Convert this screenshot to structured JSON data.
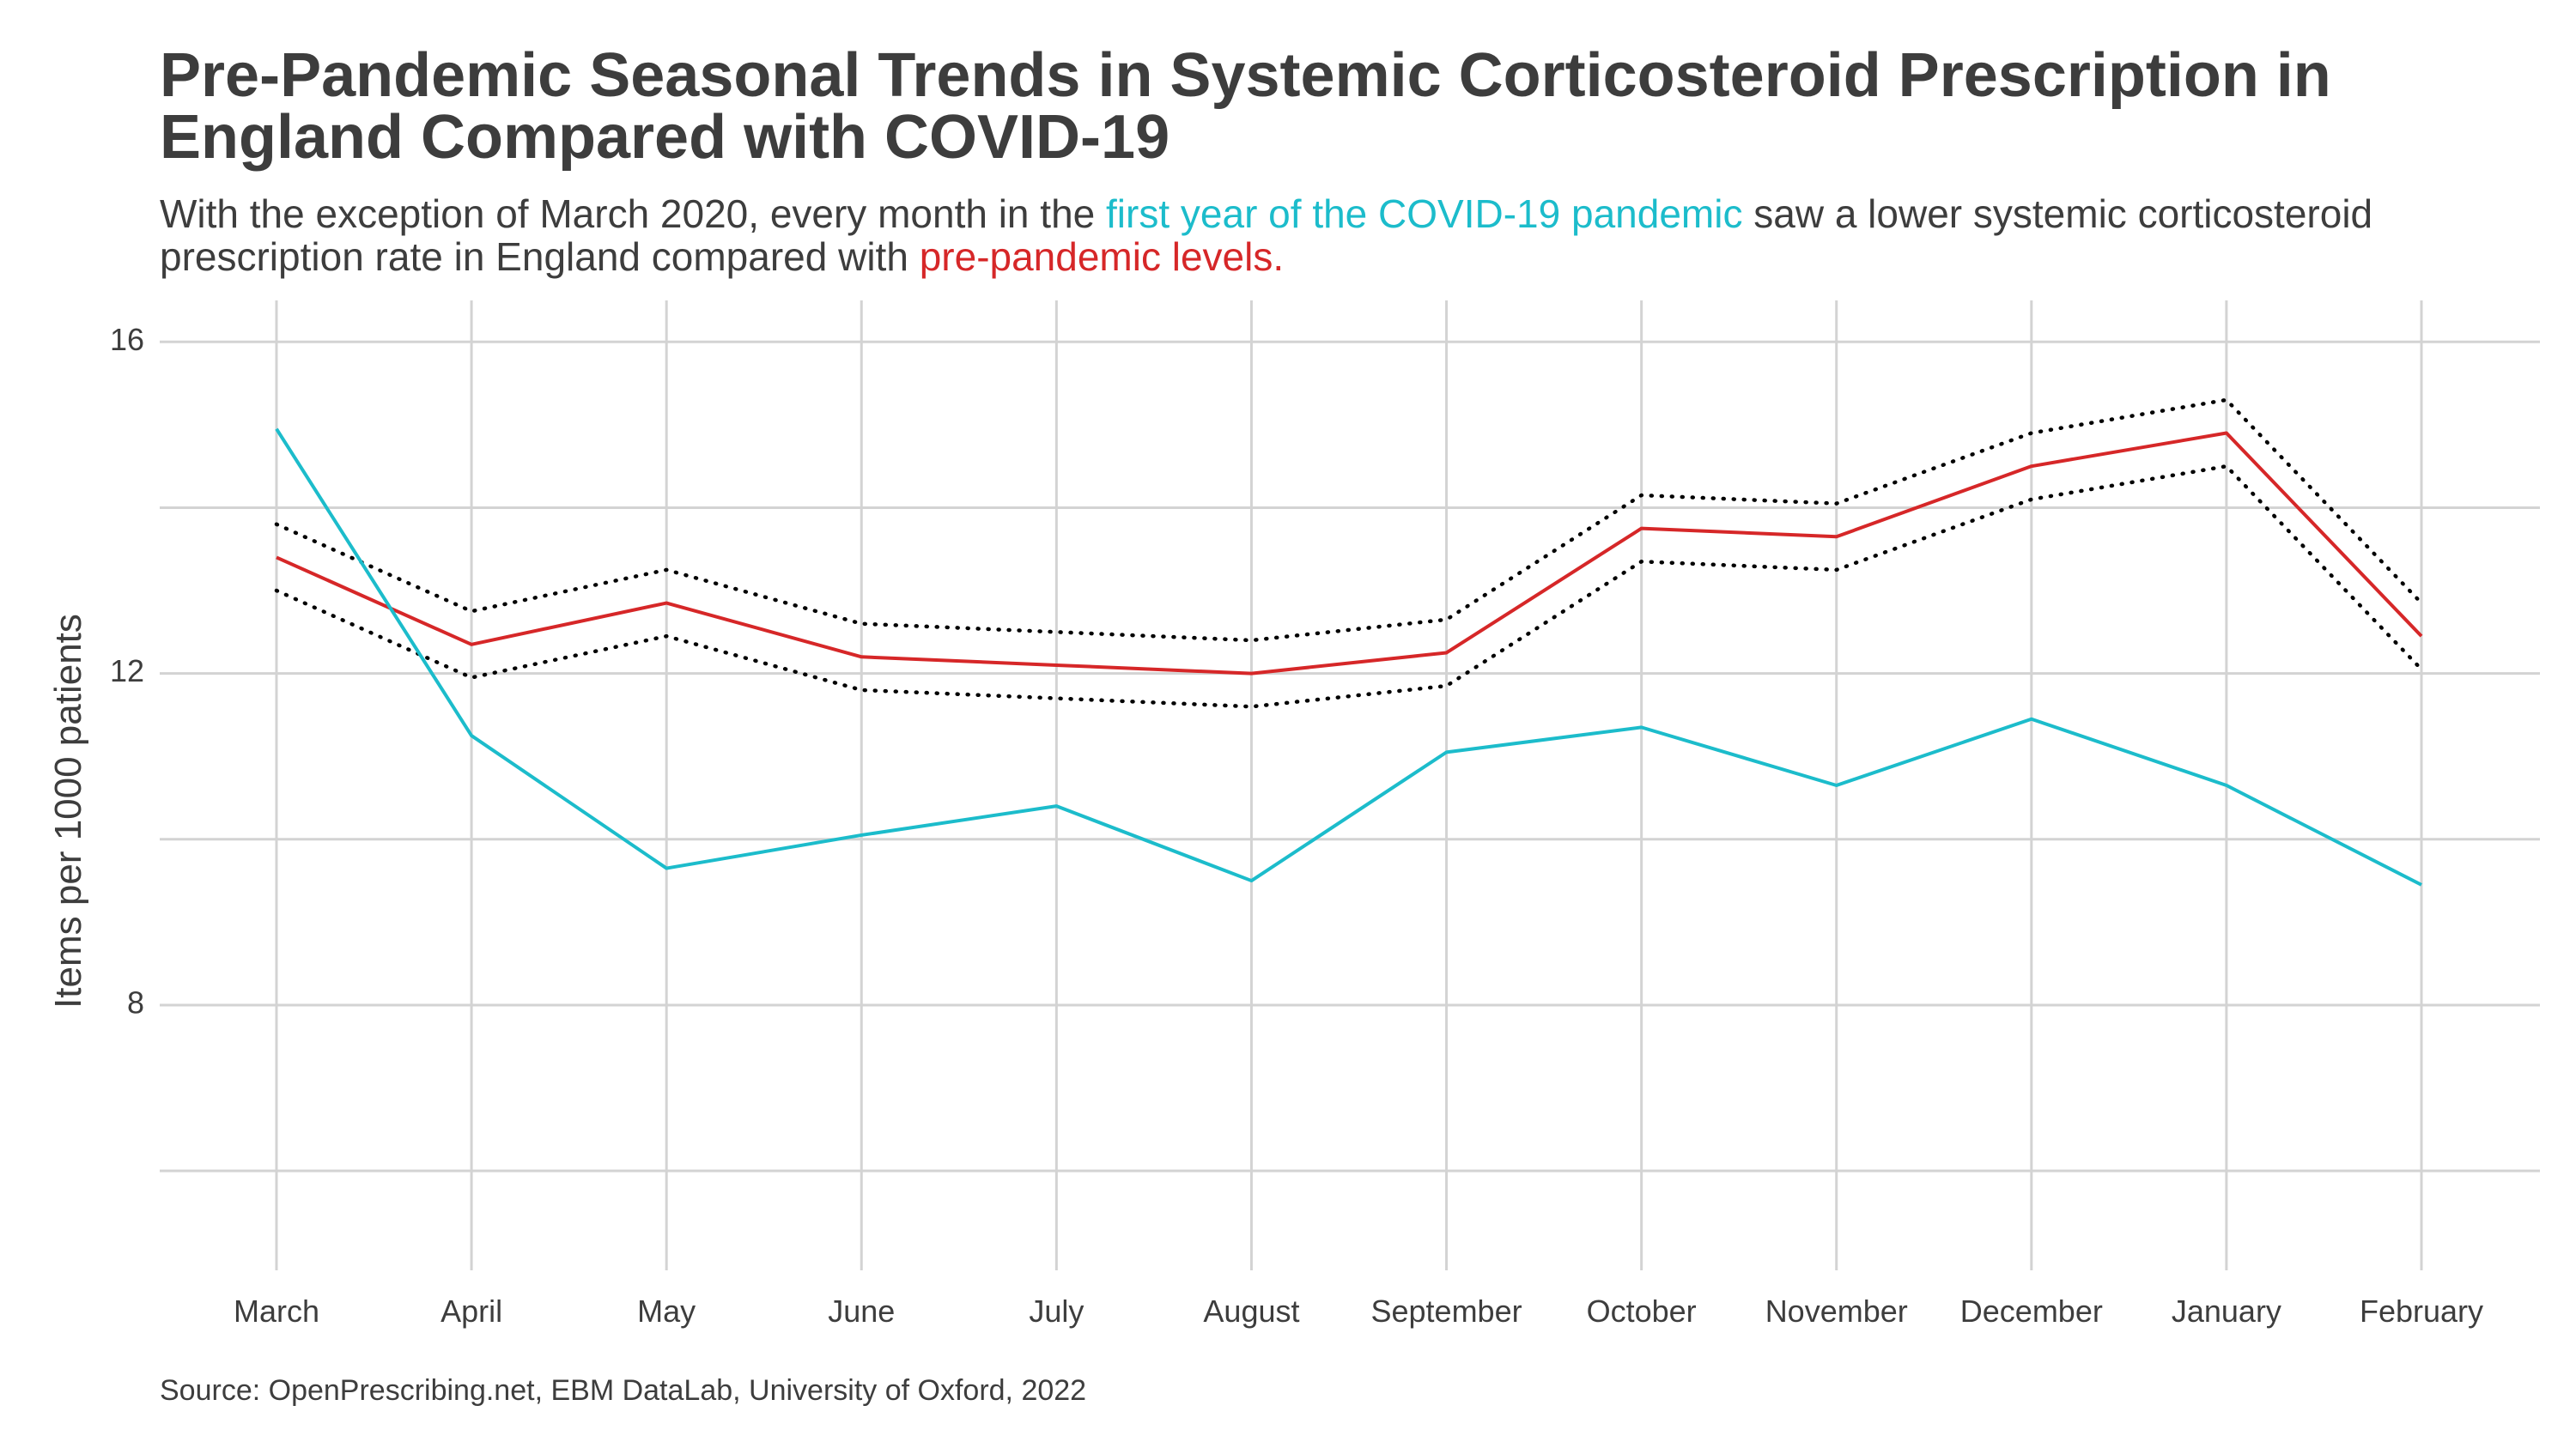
{
  "title": "Pre-Pandemic Seasonal Trends in Systemic Corticosteroid Prescription in England Compared with COVID-19",
  "subtitle": {
    "part1": "With the exception of March 2020, every month in the ",
    "highlight_covid": "first year of the COVID-19 pandemic",
    "part2": " saw a lower systemic corticosteroid prescription rate in England compared with ",
    "highlight_pre": "pre-pandemic levels."
  },
  "caption": "Source: OpenPrescribing.net, EBM DataLab, University of Oxford, 2022",
  "colors": {
    "covid": "#1cbccb",
    "pre_pandemic": "#d62728",
    "interval": "#000000",
    "grid": "#d3d3d3",
    "text": "#3d3d3d"
  },
  "chart_data": {
    "type": "line",
    "categories": [
      "March",
      "April",
      "May",
      "June",
      "July",
      "August",
      "September",
      "October",
      "November",
      "December",
      "January",
      "February"
    ],
    "ylabel": "Items per 1000 patients",
    "xlabel": "",
    "ylim": [
      4.8,
      16.5
    ],
    "y_ticks": [
      8,
      12,
      16
    ],
    "y_minor_gridlines": [
      6,
      10,
      14
    ],
    "grid": true,
    "series": [
      {
        "key": "covid",
        "style": "solid",
        "values": [
          14.95,
          11.25,
          9.65,
          10.05,
          10.4,
          9.5,
          11.05,
          11.35,
          10.65,
          11.45,
          10.65,
          9.45
        ]
      },
      {
        "key": "pre_pandemic",
        "style": "solid",
        "values": [
          13.4,
          12.35,
          12.85,
          12.2,
          12.1,
          12.0,
          12.25,
          13.75,
          13.65,
          14.5,
          14.9,
          12.45
        ]
      },
      {
        "key": "upper",
        "style": "dotted",
        "values": [
          13.8,
          12.75,
          13.25,
          12.6,
          12.5,
          12.4,
          12.65,
          14.15,
          14.05,
          14.9,
          15.3,
          12.85
        ]
      },
      {
        "key": "lower",
        "style": "dotted",
        "values": [
          13.0,
          11.95,
          12.45,
          11.8,
          11.7,
          11.6,
          11.85,
          13.35,
          13.25,
          14.1,
          14.5,
          12.05
        ]
      }
    ]
  }
}
